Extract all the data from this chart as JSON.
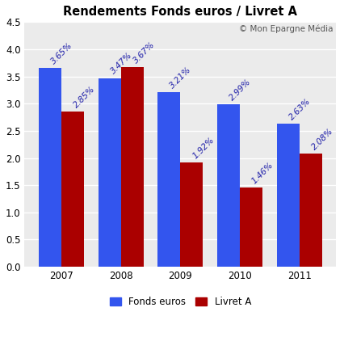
{
  "title": "Rendements Fonds euros / Livret A",
  "watermark": "© Mon Epargne Média",
  "years": [
    "2007",
    "2008",
    "2009",
    "2010",
    "2011"
  ],
  "fonds_euros": [
    3.65,
    3.47,
    3.21,
    2.99,
    2.63
  ],
  "livret_a": [
    2.85,
    3.67,
    1.92,
    1.46,
    2.08
  ],
  "fonds_color": "#3355EE",
  "livret_color": "#AA0000",
  "fig_bg_color": "#FFFFFF",
  "plot_bg_color": "#EBEBEB",
  "ylim": [
    0,
    4.5
  ],
  "yticks": [
    0.0,
    0.5,
    1.0,
    1.5,
    2.0,
    2.5,
    3.0,
    3.5,
    4.0,
    4.5
  ],
  "bar_width": 0.38,
  "legend_fonds": "Fonds euros",
  "legend_livret": "Livret A",
  "label_color": "#2222AA",
  "title_fontsize": 10.5,
  "label_fontsize": 7.5,
  "tick_fontsize": 8.5,
  "watermark_fontsize": 7.5
}
